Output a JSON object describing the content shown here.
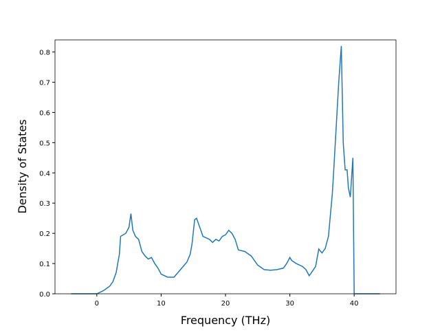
{
  "chart_data": {
    "type": "line",
    "xlabel": "Frequency (THz)",
    "ylabel": "Density of States",
    "x": [
      -4,
      0,
      1,
      2,
      2.5,
      3,
      3.5,
      3.7,
      4.5,
      5,
      5.3,
      5.6,
      6,
      6.5,
      7,
      7.5,
      8,
      8.5,
      9,
      9.5,
      10,
      11,
      12,
      13,
      14,
      14.5,
      14.8,
      15.2,
      15.5,
      16,
      16.5,
      17,
      17.5,
      18,
      18.5,
      19,
      19.5,
      20,
      20.5,
      21,
      21.5,
      22,
      23,
      24,
      24.5,
      25,
      26,
      27,
      28,
      29,
      29.5,
      30,
      30.3,
      31,
      32,
      32.5,
      33,
      33.2,
      34,
      34.5,
      35,
      35.5,
      36,
      36.6,
      36.8,
      37.2,
      37.6,
      38,
      38.3,
      38.6,
      38.9,
      39.1,
      39.4,
      39.8,
      40.0,
      40.1,
      44
    ],
    "series": [
      {
        "name": "DOS",
        "color": "#1f77b4",
        "values": [
          0,
          0,
          0.01,
          0.025,
          0.04,
          0.07,
          0.13,
          0.19,
          0.2,
          0.22,
          0.265,
          0.21,
          0.19,
          0.18,
          0.14,
          0.125,
          0.115,
          0.12,
          0.1,
          0.085,
          0.065,
          0.055,
          0.055,
          0.08,
          0.105,
          0.13,
          0.165,
          0.245,
          0.25,
          0.22,
          0.19,
          0.185,
          0.18,
          0.17,
          0.18,
          0.175,
          0.19,
          0.195,
          0.21,
          0.2,
          0.18,
          0.145,
          0.14,
          0.125,
          0.11,
          0.095,
          0.08,
          0.078,
          0.08,
          0.085,
          0.1,
          0.12,
          0.11,
          0.1,
          0.09,
          0.08,
          0.06,
          0.065,
          0.09,
          0.148,
          0.135,
          0.15,
          0.19,
          0.33,
          0.4,
          0.55,
          0.7,
          0.82,
          0.5,
          0.41,
          0.41,
          0.35,
          0.32,
          0.45,
          0,
          0,
          0
        ]
      }
    ],
    "xlim": [
      -6.5,
      46.5
    ],
    "xticks": [
      0,
      10,
      20,
      30,
      40
    ],
    "ylim": [
      0,
      0.84
    ],
    "yticks": [
      {
        "value": 0,
        "label": "0.0"
      },
      0.1,
      0.2,
      0.3,
      0.4,
      0.5,
      0.6,
      0.7,
      0.8
    ]
  }
}
